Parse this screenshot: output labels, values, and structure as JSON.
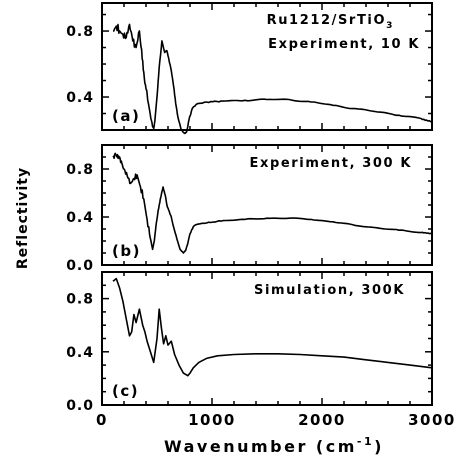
{
  "chart_data": {
    "type": "line",
    "xlabel": "Wavenumber (cm",
    "xlabel_sup": "-1",
    "xlabel_close": ")",
    "ylabel": "Reflectivity",
    "xlim": [
      0,
      3000
    ],
    "x_ticks": [
      0,
      1000,
      2000,
      3000
    ],
    "x_tick_labels": [
      "0",
      "1000",
      "2000",
      "3000"
    ],
    "grid": false,
    "panels": [
      {
        "label": "(a)",
        "annotation_lines": [
          "Ru1212/SrTiO",
          "Experiment, 10 K"
        ],
        "annotation_sub": "3",
        "ylim": [
          0.2,
          0.97
        ],
        "y_ticks": [
          0.4,
          0.8
        ],
        "y_tick_labels": [
          "0.4",
          "0.8"
        ],
        "noisy": true,
        "x": [
          100,
          130,
          160,
          190,
          220,
          250,
          280,
          310,
          340,
          360,
          380,
          400,
          430,
          460,
          470,
          480,
          500,
          520,
          545,
          570,
          590,
          610,
          630,
          650,
          670,
          690,
          720,
          750,
          770,
          790,
          820,
          870,
          950,
          1100,
          1300,
          1500,
          1700,
          1900,
          2100,
          2300,
          2500,
          2700,
          2900,
          3000
        ],
        "y": [
          0.8,
          0.83,
          0.8,
          0.78,
          0.76,
          0.84,
          0.74,
          0.7,
          0.8,
          0.69,
          0.55,
          0.45,
          0.33,
          0.22,
          0.21,
          0.25,
          0.4,
          0.58,
          0.74,
          0.67,
          0.68,
          0.62,
          0.56,
          0.47,
          0.36,
          0.28,
          0.2,
          0.18,
          0.19,
          0.26,
          0.33,
          0.36,
          0.37,
          0.375,
          0.38,
          0.385,
          0.385,
          0.37,
          0.35,
          0.33,
          0.31,
          0.29,
          0.27,
          0.25
        ]
      },
      {
        "label": "(b)",
        "annotation_lines": [
          "Experiment, 300 K"
        ],
        "ylim": [
          0.0,
          1.0
        ],
        "y_ticks": [
          0.0,
          0.4,
          0.8
        ],
        "y_tick_labels": [
          "0.0",
          "0.4",
          "0.8"
        ],
        "noisy": true,
        "x": [
          100,
          120,
          140,
          160,
          180,
          200,
          230,
          260,
          290,
          320,
          350,
          380,
          410,
          440,
          460,
          475,
          490,
          510,
          530,
          555,
          575,
          590,
          610,
          630,
          650,
          680,
          710,
          740,
          760,
          780,
          800,
          830,
          870,
          950,
          1100,
          1300,
          1500,
          1700,
          1900,
          2100,
          2300,
          2500,
          2700,
          2900,
          3000
        ],
        "y": [
          0.9,
          0.93,
          0.92,
          0.9,
          0.85,
          0.8,
          0.74,
          0.68,
          0.72,
          0.75,
          0.65,
          0.55,
          0.38,
          0.22,
          0.13,
          0.2,
          0.32,
          0.45,
          0.55,
          0.65,
          0.58,
          0.5,
          0.45,
          0.4,
          0.32,
          0.22,
          0.13,
          0.1,
          0.12,
          0.18,
          0.26,
          0.32,
          0.34,
          0.35,
          0.37,
          0.38,
          0.39,
          0.39,
          0.38,
          0.36,
          0.33,
          0.31,
          0.29,
          0.27,
          0.26
        ]
      },
      {
        "label": "(c)",
        "annotation_lines": [
          "Simulation, 300K"
        ],
        "ylim": [
          0.0,
          1.0
        ],
        "y_ticks": [
          0.0,
          0.4,
          0.8
        ],
        "y_tick_labels": [
          "0.0",
          "0.4",
          "0.8"
        ],
        "noisy": false,
        "x": [
          100,
          130,
          160,
          190,
          220,
          250,
          270,
          290,
          310,
          340,
          370,
          390,
          410,
          440,
          470,
          500,
          520,
          540,
          560,
          580,
          600,
          630,
          660,
          700,
          740,
          780,
          800,
          830,
          880,
          950,
          1050,
          1200,
          1400,
          1600,
          1800,
          2000,
          2200,
          2400,
          2600,
          2800,
          3000
        ],
        "y": [
          0.93,
          0.95,
          0.88,
          0.78,
          0.65,
          0.52,
          0.55,
          0.68,
          0.62,
          0.72,
          0.6,
          0.55,
          0.48,
          0.4,
          0.32,
          0.5,
          0.72,
          0.58,
          0.46,
          0.52,
          0.45,
          0.48,
          0.38,
          0.3,
          0.24,
          0.22,
          0.24,
          0.28,
          0.32,
          0.35,
          0.37,
          0.38,
          0.385,
          0.385,
          0.38,
          0.37,
          0.36,
          0.34,
          0.32,
          0.3,
          0.28
        ]
      }
    ]
  }
}
